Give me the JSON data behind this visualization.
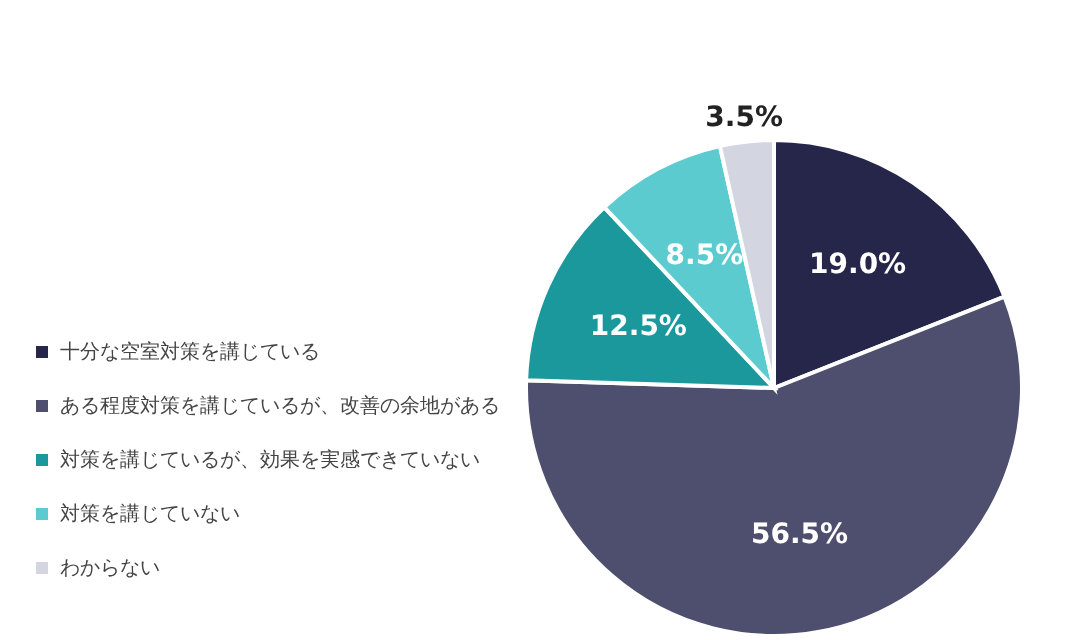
{
  "chart_data": {
    "type": "pie",
    "categories": [
      "十分な空室対策を講じている",
      "ある程度対策を講じているが、改善の余地がある",
      "対策を講じているが、効果を実感できていない",
      "対策を講じていない",
      "わからない"
    ],
    "values": [
      19.0,
      56.5,
      12.5,
      8.5,
      3.5
    ],
    "colors": [
      "#26264a",
      "#4e4e6e",
      "#1a989c",
      "#5ccbd0",
      "#d3d6e0"
    ],
    "value_labels": [
      "19.0%",
      "56.5%",
      "12.5%",
      "8.5%",
      "3.5%"
    ],
    "legend": "left"
  }
}
